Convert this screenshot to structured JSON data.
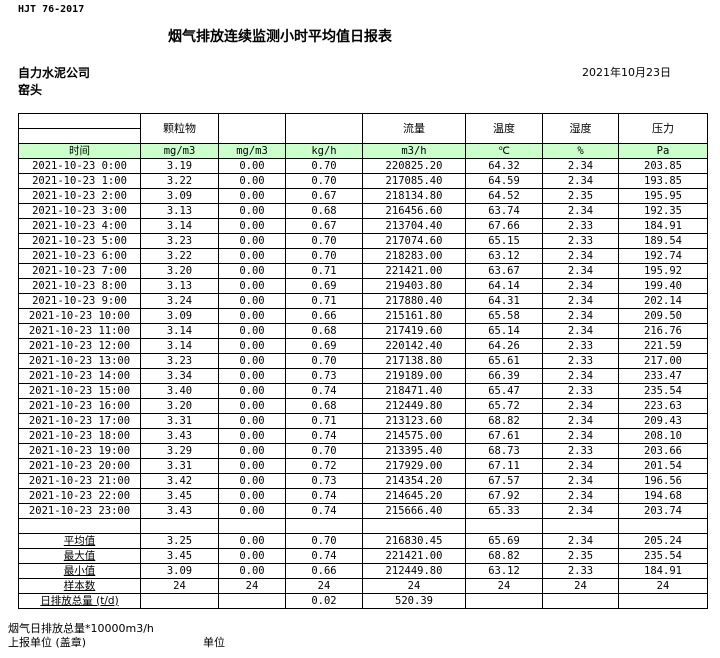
{
  "header": {
    "standard": "HJT  76-2017",
    "title": "烟气排放连续监测小时平均值日报表",
    "company": "自力水泥公司",
    "location": "窑头",
    "date": "2021年10月23日"
  },
  "columns": [
    "",
    "颗粒物",
    "",
    "",
    "流量",
    "温度",
    "湿度",
    "压力"
  ],
  "units": [
    "时间",
    "mg/m3",
    "mg/m3",
    "kg/h",
    "m3/h",
    "℃",
    "%",
    "Pa"
  ],
  "rows": [
    [
      "2021-10-23 0:00",
      "3.19",
      "0.00",
      "0.70",
      "220825.20",
      "64.32",
      "2.34",
      "203.85"
    ],
    [
      "2021-10-23 1:00",
      "3.22",
      "0.00",
      "0.70",
      "217085.40",
      "64.59",
      "2.34",
      "193.85"
    ],
    [
      "2021-10-23 2:00",
      "3.09",
      "0.00",
      "0.67",
      "218134.80",
      "64.52",
      "2.35",
      "195.95"
    ],
    [
      "2021-10-23 3:00",
      "3.13",
      "0.00",
      "0.68",
      "216456.60",
      "63.74",
      "2.34",
      "192.35"
    ],
    [
      "2021-10-23 4:00",
      "3.14",
      "0.00",
      "0.67",
      "213704.40",
      "67.66",
      "2.33",
      "184.91"
    ],
    [
      "2021-10-23 5:00",
      "3.23",
      "0.00",
      "0.70",
      "217074.60",
      "65.15",
      "2.33",
      "189.54"
    ],
    [
      "2021-10-23 6:00",
      "3.22",
      "0.00",
      "0.70",
      "218283.00",
      "63.12",
      "2.34",
      "192.74"
    ],
    [
      "2021-10-23 7:00",
      "3.20",
      "0.00",
      "0.71",
      "221421.00",
      "63.67",
      "2.34",
      "195.92"
    ],
    [
      "2021-10-23 8:00",
      "3.13",
      "0.00",
      "0.69",
      "219403.80",
      "64.14",
      "2.34",
      "199.40"
    ],
    [
      "2021-10-23 9:00",
      "3.24",
      "0.00",
      "0.71",
      "217880.40",
      "64.31",
      "2.34",
      "202.14"
    ],
    [
      "2021-10-23 10:00",
      "3.09",
      "0.00",
      "0.66",
      "215161.80",
      "65.58",
      "2.34",
      "209.50"
    ],
    [
      "2021-10-23 11:00",
      "3.14",
      "0.00",
      "0.68",
      "217419.60",
      "65.14",
      "2.34",
      "216.76"
    ],
    [
      "2021-10-23 12:00",
      "3.14",
      "0.00",
      "0.69",
      "220142.40",
      "64.26",
      "2.33",
      "221.59"
    ],
    [
      "2021-10-23 13:00",
      "3.23",
      "0.00",
      "0.70",
      "217138.80",
      "65.61",
      "2.33",
      "217.00"
    ],
    [
      "2021-10-23 14:00",
      "3.34",
      "0.00",
      "0.73",
      "219189.00",
      "66.39",
      "2.34",
      "233.47"
    ],
    [
      "2021-10-23 15:00",
      "3.40",
      "0.00",
      "0.74",
      "218471.40",
      "65.47",
      "2.33",
      "235.54"
    ],
    [
      "2021-10-23 16:00",
      "3.20",
      "0.00",
      "0.68",
      "212449.80",
      "65.72",
      "2.34",
      "223.63"
    ],
    [
      "2021-10-23 17:00",
      "3.31",
      "0.00",
      "0.71",
      "213123.60",
      "68.82",
      "2.34",
      "209.43"
    ],
    [
      "2021-10-23 18:00",
      "3.43",
      "0.00",
      "0.74",
      "214575.00",
      "67.61",
      "2.34",
      "208.10"
    ],
    [
      "2021-10-23 19:00",
      "3.29",
      "0.00",
      "0.70",
      "213395.40",
      "68.73",
      "2.33",
      "203.66"
    ],
    [
      "2021-10-23 20:00",
      "3.31",
      "0.00",
      "0.72",
      "217929.00",
      "67.11",
      "2.34",
      "201.54"
    ],
    [
      "2021-10-23 21:00",
      "3.42",
      "0.00",
      "0.73",
      "214354.20",
      "67.57",
      "2.34",
      "196.56"
    ],
    [
      "2021-10-23 22:00",
      "3.45",
      "0.00",
      "0.74",
      "214645.20",
      "67.92",
      "2.34",
      "194.68"
    ],
    [
      "2021-10-23 23:00",
      "3.43",
      "0.00",
      "0.74",
      "215666.40",
      "65.33",
      "2.34",
      "203.74"
    ]
  ],
  "summary": [
    [
      "平均值",
      "3.25",
      "0.00",
      "0.70",
      "216830.45",
      "65.69",
      "2.34",
      "205.24"
    ],
    [
      "最大值",
      "3.45",
      "0.00",
      "0.74",
      "221421.00",
      "68.82",
      "2.35",
      "235.54"
    ],
    [
      "最小值",
      "3.09",
      "0.00",
      "0.66",
      "212449.80",
      "63.12",
      "2.33",
      "184.91"
    ],
    [
      "样本数",
      "24",
      "24",
      "24",
      "24",
      "24",
      "24",
      "24"
    ],
    [
      "日排放总量 (t/d)",
      "",
      "",
      "0.02",
      "520.39",
      "",
      "",
      ""
    ]
  ],
  "footer": {
    "note": "烟气日排放总量*10000m3/h",
    "reporter": "上报单位 (盖章)",
    "unit": "单位"
  }
}
